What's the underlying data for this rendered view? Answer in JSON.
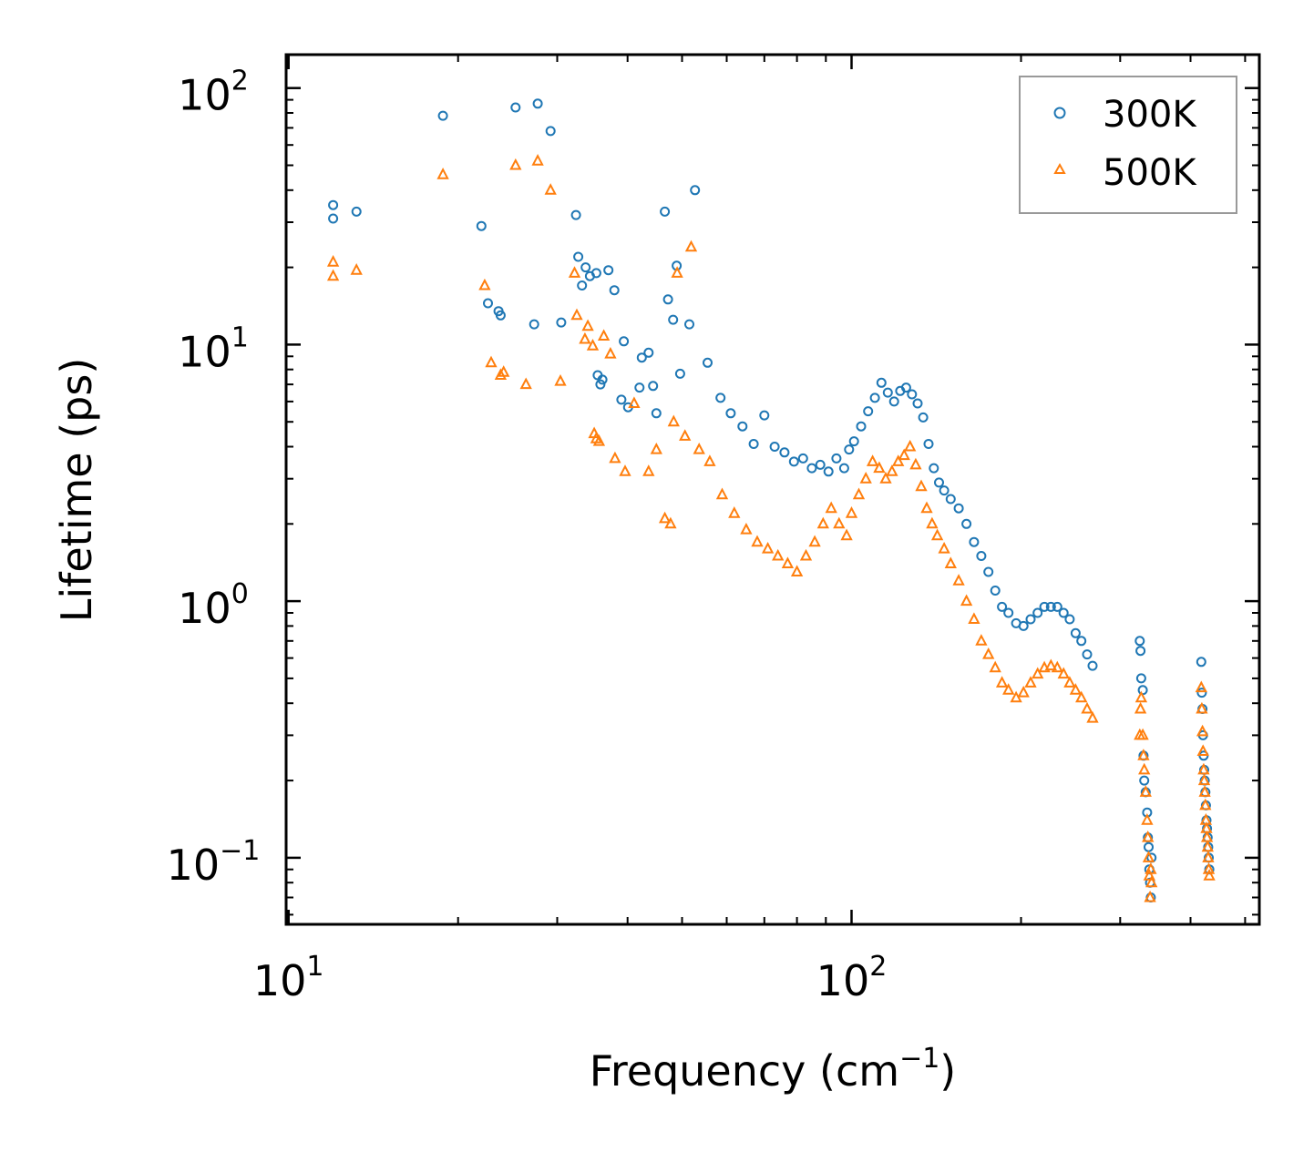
{
  "chart_data": {
    "type": "scatter",
    "title": "",
    "xlabel": {
      "text": "Frequency (cm",
      "sup": "−1",
      "suffix": ")"
    },
    "ylabel": "Lifetime (ps)",
    "xscale": "log",
    "yscale": "log",
    "xlim": [
      9.9,
      530
    ],
    "ylim": [
      0.055,
      135
    ],
    "xticks": [
      {
        "value": 10,
        "base": "10",
        "exp": "1"
      },
      {
        "value": 100,
        "base": "10",
        "exp": "2"
      }
    ],
    "yticks": [
      {
        "value": 0.1,
        "base": "10",
        "exp": "−1"
      },
      {
        "value": 1,
        "base": "10",
        "exp": "0"
      },
      {
        "value": 10,
        "base": "10",
        "exp": "1"
      },
      {
        "value": 100,
        "base": "10",
        "exp": "2"
      }
    ],
    "grid": false,
    "legend_position": "top-right",
    "series": [
      {
        "name": "300K",
        "marker": "circle",
        "color": "#1f77b4",
        "x": [
          12.0,
          12.0,
          13.2,
          18.8,
          22.0,
          22.6,
          23.6,
          23.8,
          25.3,
          27.3,
          27.7,
          29.2,
          30.5,
          32.4,
          32.7,
          33.2,
          33.7,
          34.3,
          35.2,
          35.4,
          35.8,
          36.1,
          37.0,
          37.9,
          39.0,
          39.4,
          40.1,
          42.0,
          42.4,
          43.6,
          44.4,
          45.0,
          46.6,
          47.2,
          48.2,
          48.9,
          49.6,
          51.5,
          52.7,
          55.5,
          58.5,
          61.0,
          64.0,
          67.0,
          70.0,
          73.0,
          76.0,
          79.0,
          82.0,
          85.0,
          88.0,
          91.0,
          94.0,
          97.0,
          99.0,
          101.0,
          104.0,
          107.0,
          110.0,
          113.0,
          116.0,
          119.0,
          122.0,
          125.0,
          128.0,
          131.0,
          134.0,
          137.0,
          140.0,
          143.0,
          146.0,
          150.0,
          155.0,
          160.0,
          165.0,
          170.0,
          175.0,
          180.0,
          185.0,
          190.0,
          196.0,
          202.0,
          208.0,
          214.0,
          220.0,
          226.0,
          232.0,
          238.0,
          244.0,
          250.0,
          256.0,
          262.0,
          268.0,
          325.0,
          326.0,
          327.0,
          329.0,
          330.0,
          331.0,
          333.0,
          335.0,
          336.0,
          337.0,
          338.0,
          339.0,
          340.0,
          341.0,
          418.0,
          419.0,
          420.0,
          421.0,
          422.0,
          423.0,
          424.0,
          425.0,
          426.0,
          427.0,
          428.0,
          429.0,
          430.0,
          431.0,
          432.0
        ],
        "y": [
          35.0,
          31.0,
          33.0,
          78.0,
          29.0,
          14.5,
          13.5,
          13.0,
          84.0,
          12.0,
          87.0,
          68.0,
          12.2,
          32.0,
          22.0,
          17.0,
          20.0,
          18.5,
          19.0,
          7.6,
          7.0,
          7.3,
          19.5,
          16.3,
          6.1,
          10.3,
          5.7,
          6.8,
          8.9,
          9.3,
          6.9,
          5.4,
          33.0,
          15.0,
          12.5,
          20.3,
          7.7,
          12.0,
          40.0,
          8.5,
          6.2,
          5.4,
          4.8,
          4.1,
          5.3,
          4.0,
          3.8,
          3.5,
          3.6,
          3.3,
          3.4,
          3.2,
          3.6,
          3.3,
          3.9,
          4.2,
          4.8,
          5.5,
          6.2,
          7.1,
          6.5,
          6.0,
          6.6,
          6.8,
          6.4,
          5.9,
          5.2,
          4.1,
          3.3,
          2.9,
          2.7,
          2.5,
          2.3,
          2.0,
          1.7,
          1.5,
          1.3,
          1.1,
          0.95,
          0.9,
          0.82,
          0.8,
          0.85,
          0.9,
          0.95,
          0.95,
          0.95,
          0.9,
          0.85,
          0.75,
          0.7,
          0.62,
          0.56,
          0.7,
          0.64,
          0.5,
          0.45,
          0.25,
          0.2,
          0.18,
          0.15,
          0.12,
          0.11,
          0.09,
          0.08,
          0.07,
          0.1,
          0.58,
          0.44,
          0.38,
          0.3,
          0.25,
          0.22,
          0.2,
          0.18,
          0.16,
          0.14,
          0.13,
          0.12,
          0.11,
          0.1,
          0.09
        ]
      },
      {
        "name": "500K",
        "marker": "triangle",
        "color": "#ff7f0e",
        "x": [
          12.0,
          12.0,
          13.2,
          18.8,
          22.3,
          22.9,
          23.8,
          24.1,
          25.3,
          26.4,
          27.7,
          29.2,
          30.4,
          32.2,
          32.5,
          33.6,
          34.0,
          34.7,
          34.9,
          35.2,
          35.6,
          36.3,
          37.3,
          38.0,
          39.6,
          41.1,
          43.6,
          45.0,
          46.6,
          47.7,
          48.3,
          49.0,
          50.6,
          51.9,
          53.6,
          56.0,
          58.9,
          61.9,
          65.0,
          68.0,
          71.0,
          74.0,
          77.0,
          80.0,
          83.0,
          86.0,
          89.0,
          92.0,
          95.0,
          98.0,
          100.0,
          103.0,
          106.0,
          109.0,
          112.0,
          115.0,
          118.0,
          121.0,
          124.0,
          127.0,
          130.0,
          133.0,
          136.0,
          139.0,
          142.0,
          146.0,
          150.0,
          155.0,
          160.0,
          165.0,
          170.0,
          175.0,
          180.0,
          185.0,
          190.0,
          196.0,
          202.0,
          208.0,
          214.0,
          220.0,
          226.0,
          232.0,
          238.0,
          244.0,
          250.0,
          256.0,
          262.0,
          268.0,
          325.0,
          326.0,
          327.0,
          329.0,
          330.0,
          331.0,
          333.0,
          335.0,
          336.0,
          337.0,
          338.0,
          339.0,
          340.0,
          341.0,
          418.0,
          419.0,
          420.0,
          421.0,
          422.0,
          423.0,
          424.0,
          425.0,
          426.0,
          427.0,
          428.0,
          429.0,
          430.0,
          431.0,
          432.0
        ],
        "y": [
          21.0,
          18.5,
          19.5,
          46.0,
          17.0,
          8.5,
          7.6,
          7.8,
          50.0,
          7.0,
          52.0,
          40.0,
          7.2,
          19.0,
          13.0,
          10.5,
          11.8,
          9.9,
          4.5,
          4.3,
          4.2,
          10.8,
          9.2,
          3.6,
          3.2,
          5.9,
          3.2,
          3.9,
          2.1,
          2.0,
          5.0,
          19.0,
          4.4,
          24.0,
          3.9,
          3.5,
          2.6,
          2.2,
          1.9,
          1.7,
          1.6,
          1.5,
          1.4,
          1.3,
          1.5,
          1.7,
          2.0,
          2.3,
          2.0,
          1.8,
          2.2,
          2.6,
          3.0,
          3.5,
          3.3,
          3.0,
          3.2,
          3.5,
          3.7,
          4.0,
          3.4,
          2.8,
          2.3,
          2.0,
          1.8,
          1.6,
          1.4,
          1.2,
          1.0,
          0.85,
          0.7,
          0.62,
          0.55,
          0.48,
          0.45,
          0.42,
          0.44,
          0.48,
          0.52,
          0.55,
          0.56,
          0.55,
          0.52,
          0.48,
          0.45,
          0.42,
          0.38,
          0.35,
          0.3,
          0.38,
          0.42,
          0.3,
          0.25,
          0.22,
          0.18,
          0.14,
          0.12,
          0.1,
          0.085,
          0.07,
          0.09,
          0.08,
          0.46,
          0.38,
          0.31,
          0.26,
          0.22,
          0.2,
          0.18,
          0.16,
          0.14,
          0.13,
          0.12,
          0.11,
          0.1,
          0.09,
          0.085
        ]
      }
    ]
  }
}
